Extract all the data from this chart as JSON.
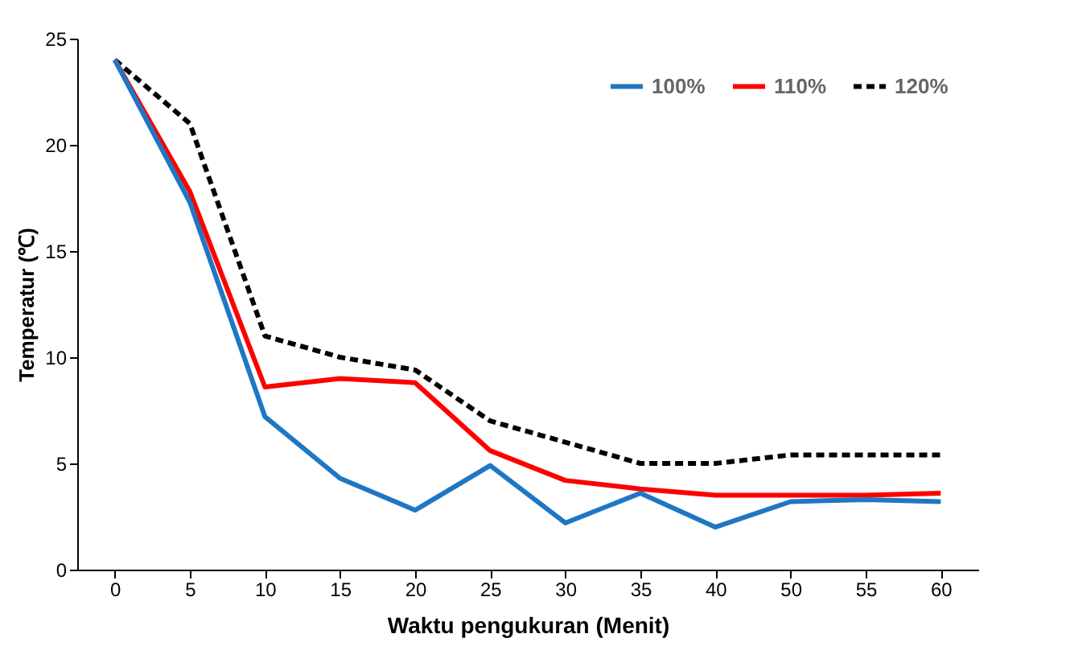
{
  "chart_data": {
    "type": "line",
    "xlabel": "Waktu pengukuran (Menit)",
    "ylabel": "Temperatur (℃)",
    "categories": [
      "0",
      "5",
      "10",
      "15",
      "20",
      "25",
      "30",
      "35",
      "40",
      "50",
      "55",
      "60"
    ],
    "series": [
      {
        "name": "100%",
        "color": "#1f77c4",
        "line_style": "solid",
        "values": [
          24,
          17.3,
          7.2,
          4.3,
          2.8,
          4.9,
          2.2,
          3.6,
          2.0,
          3.2,
          3.3,
          3.2
        ]
      },
      {
        "name": "110%",
        "color": "#ff0000",
        "line_style": "solid",
        "values": [
          24,
          17.8,
          8.6,
          9.0,
          8.8,
          5.6,
          4.2,
          3.8,
          3.5,
          3.5,
          3.5,
          3.6
        ]
      },
      {
        "name": "120%",
        "color": "#000000",
        "line_style": "dashed",
        "values": [
          24,
          21,
          11,
          10,
          9.4,
          7.0,
          6.0,
          5.0,
          5.0,
          5.4,
          5.4,
          5.4
        ]
      }
    ],
    "ylim": [
      0,
      25
    ],
    "yticks": [
      0,
      5,
      10,
      15,
      20,
      25
    ],
    "grid": false,
    "legend": "top right",
    "marker": "none"
  }
}
